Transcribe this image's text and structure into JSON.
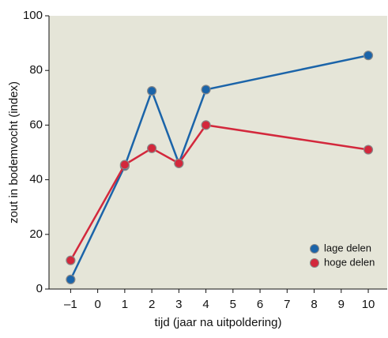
{
  "chart_data": {
    "type": "line",
    "x_label": "tijd (jaar na uitpoldering)",
    "y_label": "zout in bodemvocht (index)",
    "series": [
      {
        "name": "lage delen",
        "color": "#1b64a9",
        "x": [
          -1,
          1,
          2,
          3,
          4,
          10
        ],
        "values": [
          3.5,
          45,
          72.5,
          46,
          73,
          85.5
        ]
      },
      {
        "name": "hoge delen",
        "color": "#d3283c",
        "x": [
          -1,
          1,
          2,
          3,
          4,
          10
        ],
        "values": [
          10.5,
          45.5,
          51.5,
          46,
          60,
          51
        ]
      }
    ],
    "xlim": [
      -1.8,
      10.7
    ],
    "xticks": [
      {
        "value": -1,
        "label": "–1"
      },
      0,
      1,
      2,
      3,
      4,
      5,
      6,
      7,
      8,
      9,
      10
    ],
    "ylim": [
      0,
      100
    ],
    "yticks": [
      0,
      20,
      40,
      60,
      80,
      100
    ],
    "grid": false,
    "legend": "lower right"
  }
}
